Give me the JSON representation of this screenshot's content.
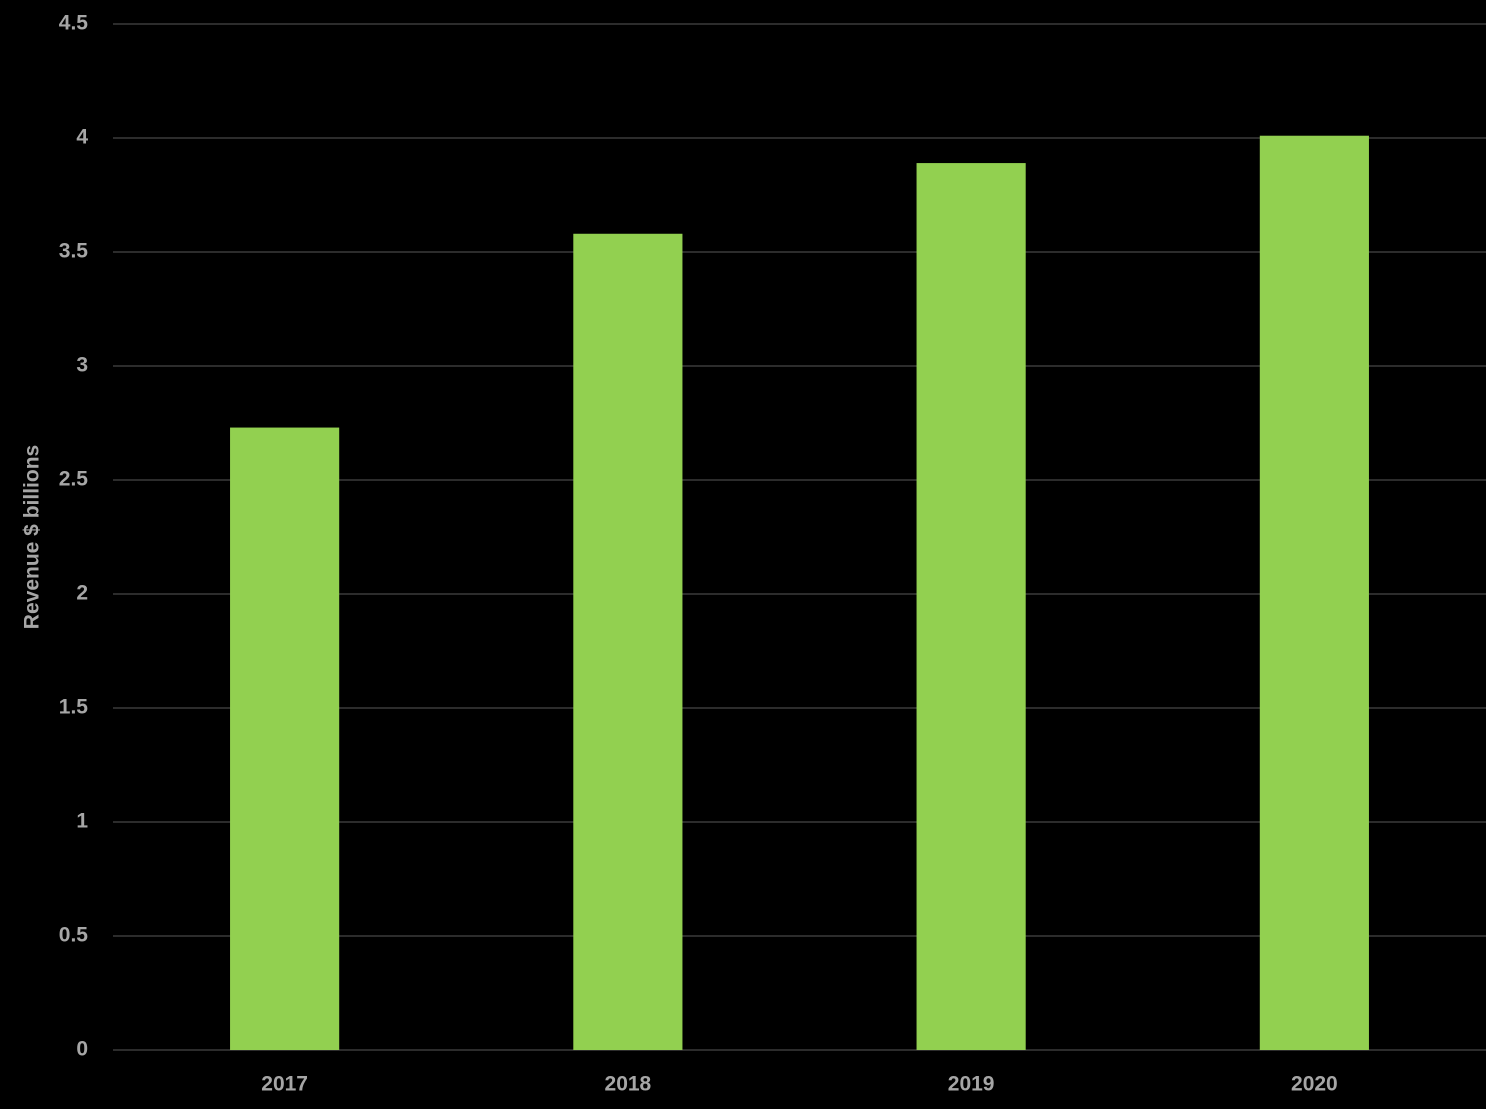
{
  "chart_data": {
    "type": "bar",
    "y_label": "Revenue $ billions",
    "categories": [
      "2017",
      "2018",
      "2019",
      "2020"
    ],
    "values": [
      2.73,
      3.58,
      3.89,
      4.01
    ],
    "color": "#92d050",
    "ylim": [
      0,
      4.5
    ],
    "yticks": [
      0,
      0.5,
      1,
      1.5,
      2,
      2.5,
      3,
      3.5,
      4,
      4.5
    ],
    "grid": true
  }
}
